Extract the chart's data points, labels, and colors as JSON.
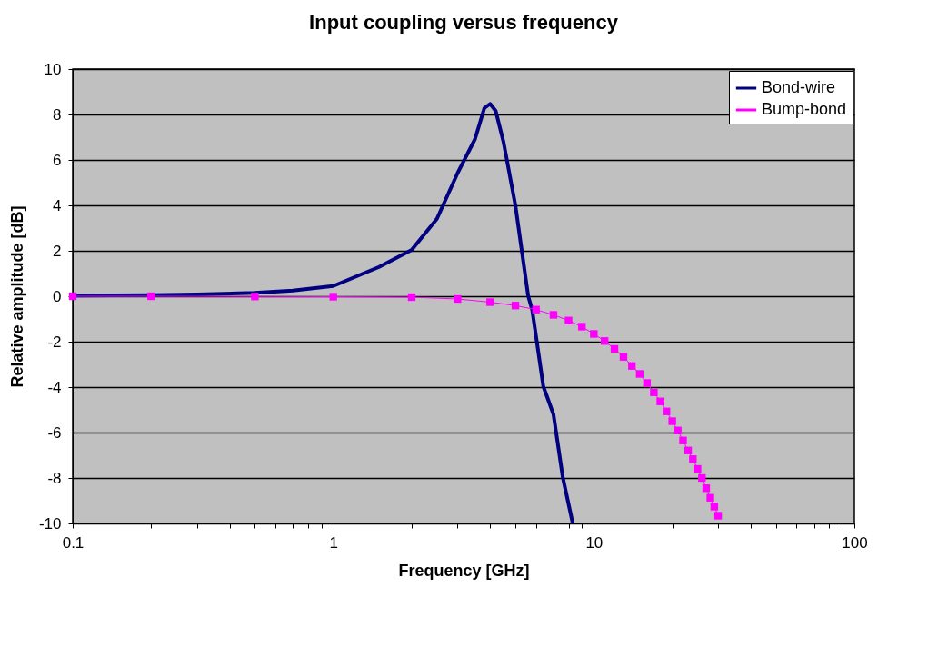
{
  "chart_data": {
    "type": "line",
    "title": "Input coupling versus frequency",
    "xlabel": "Frequency [GHz]",
    "ylabel": "Relative amplitude [dB]",
    "log": "x",
    "grid": "y",
    "legend": "top right",
    "xlim": [
      0.1,
      100
    ],
    "ylim": [
      -10,
      10
    ],
    "xticks": [
      0.1,
      {
        "value": 0.2,
        "label": null
      },
      {
        "value": 0.3,
        "label": null
      },
      {
        "value": 0.4,
        "label": null
      },
      {
        "value": 0.5,
        "label": null
      },
      {
        "value": 0.6,
        "label": null
      },
      {
        "value": 0.7,
        "label": null
      },
      {
        "value": 0.8,
        "label": null
      },
      {
        "value": 0.9,
        "label": null
      },
      1,
      {
        "value": 2,
        "label": null
      },
      {
        "value": 3,
        "label": null
      },
      {
        "value": 4,
        "label": null
      },
      {
        "value": 5,
        "label": null
      },
      {
        "value": 6,
        "label": null
      },
      {
        "value": 7,
        "label": null
      },
      {
        "value": 8,
        "label": null
      },
      {
        "value": 9,
        "label": null
      },
      10,
      {
        "value": 20,
        "label": null
      },
      {
        "value": 30,
        "label": null
      },
      {
        "value": 40,
        "label": null
      },
      {
        "value": 50,
        "label": null
      },
      {
        "value": 60,
        "label": null
      },
      {
        "value": 70,
        "label": null
      },
      {
        "value": 80,
        "label": null
      },
      {
        "value": 90,
        "label": null
      },
      100
    ],
    "yticks": [
      -10,
      -8,
      -6,
      -4,
      -2,
      0,
      2,
      4,
      6,
      8,
      10
    ],
    "series": [
      {
        "name": "Bond-wire",
        "color": "#000080",
        "marker": "none",
        "x": [
          0.1,
          0.2,
          0.3,
          0.5,
          0.7,
          1,
          1.5,
          2,
          2.5,
          3,
          3.5,
          3.8,
          4,
          4.2,
          4.5,
          5,
          5.6,
          5.8,
          6.4,
          7,
          7.6,
          8.3
        ],
        "values": [
          0.03,
          0.05,
          0.08,
          0.15,
          0.25,
          0.45,
          1.29,
          2.04,
          3.41,
          5.42,
          6.92,
          8.28,
          8.47,
          8.16,
          6.8,
          4.0,
          0,
          -0.6,
          -3.97,
          -5.2,
          -7.97,
          -10
        ]
      },
      {
        "name": "Bump-bond",
        "color": "#ff00ff",
        "marker": "square",
        "x": [
          0.1,
          0.2,
          0.5,
          1,
          2,
          3,
          4,
          5,
          6,
          7,
          8,
          9,
          10,
          11,
          12,
          13,
          14,
          15,
          16,
          17,
          18,
          19,
          20,
          21,
          22,
          23,
          24,
          25,
          26,
          27,
          28,
          29,
          30
        ],
        "values": [
          0,
          0,
          -0.01,
          -0.02,
          -0.04,
          -0.12,
          -0.26,
          -0.41,
          -0.59,
          -0.82,
          -1.07,
          -1.34,
          -1.66,
          -1.97,
          -2.32,
          -2.67,
          -3.07,
          -3.42,
          -3.82,
          -4.23,
          -4.63,
          -5.07,
          -5.5,
          -5.91,
          -6.35,
          -6.79,
          -7.17,
          -7.6,
          -8.0,
          -8.45,
          -8.87,
          -9.26,
          -9.66
        ]
      }
    ]
  }
}
